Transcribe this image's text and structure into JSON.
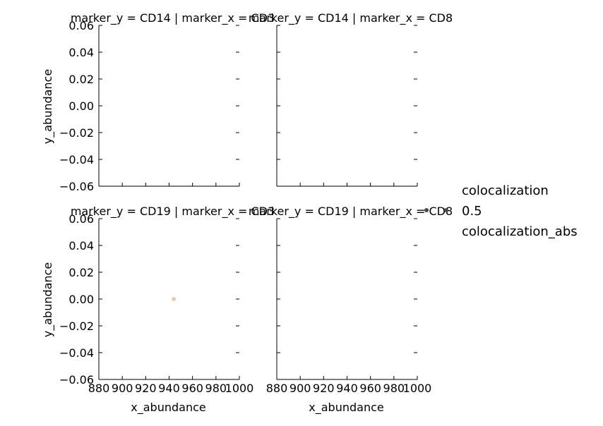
{
  "chart_data": {
    "type": "scatter",
    "facet_grid": true,
    "xlabel": "x_abundance",
    "ylabel": "y_abundance",
    "xlim": [
      880,
      1000
    ],
    "ylim": [
      -0.06,
      0.06
    ],
    "x_ticks": [
      880,
      900,
      920,
      940,
      960,
      980,
      1000
    ],
    "x_tick_labels": [
      "880",
      "900",
      "920",
      "940",
      "960",
      "980",
      "1000"
    ],
    "y_ticks": [
      -0.06,
      -0.04,
      -0.02,
      0.0,
      0.02,
      0.04,
      0.06
    ],
    "y_tick_labels": [
      "−0.06",
      "−0.04",
      "−0.02",
      "0.00",
      "0.02",
      "0.04",
      "0.06"
    ],
    "grid": false,
    "legend_placement": "right",
    "point_color": "#e8c9b0",
    "panels": [
      {
        "row": 0,
        "col": 0,
        "title": "marker_y = CD14 | marker_x = CD3",
        "points": []
      },
      {
        "row": 0,
        "col": 1,
        "title": "marker_y = CD14 | marker_x = CD8",
        "points": []
      },
      {
        "row": 1,
        "col": 0,
        "title": "marker_y = CD19 | marker_x = CD3",
        "points": [
          {
            "x": 944,
            "y": 0.0
          }
        ]
      },
      {
        "row": 1,
        "col": 1,
        "title": "marker_y = CD19 | marker_x = CD8",
        "points": []
      }
    ],
    "legend": {
      "title": "colocalization",
      "items": [
        {
          "label": "0.5",
          "color": "#4a4a4a"
        }
      ],
      "subtitle": "colocalization_abs"
    }
  }
}
